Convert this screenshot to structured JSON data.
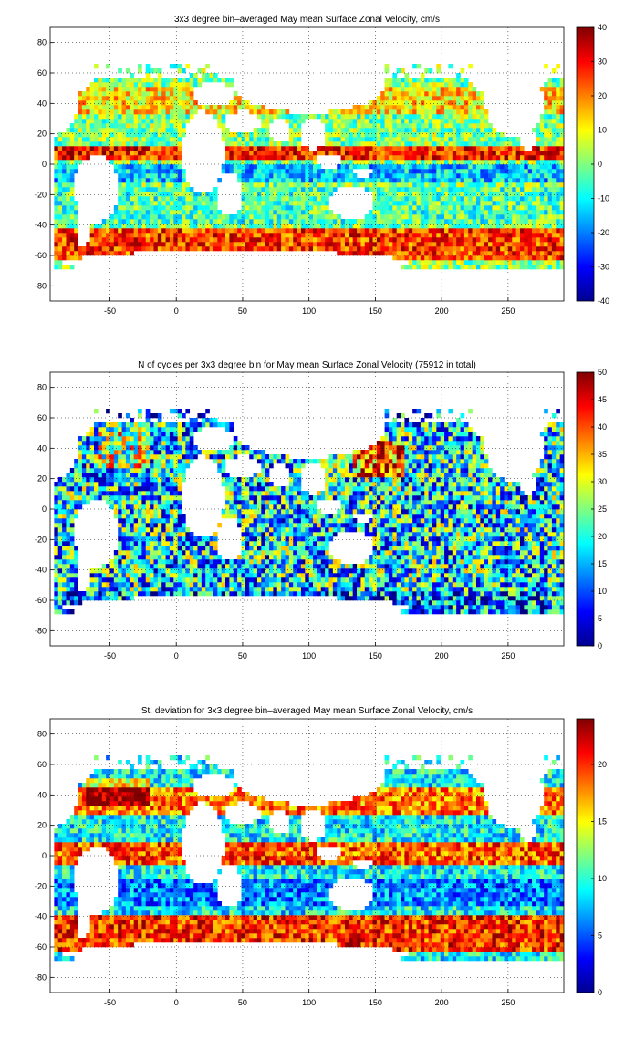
{
  "chart_data": [
    {
      "type": "heatmap",
      "title": "3x3 degree bin–averaged May mean Surface Zonal Velocity, cm/s",
      "xlabel": "",
      "ylabel": "",
      "xlim": [
        -95,
        292
      ],
      "ylim": [
        -90,
        90
      ],
      "xticks": [
        -50,
        0,
        50,
        100,
        150,
        200,
        250
      ],
      "yticks": [
        80,
        60,
        40,
        20,
        0,
        -20,
        -40,
        -60,
        -80
      ],
      "grid": true,
      "colormap": "jet",
      "colorbar": {
        "range": [
          -40,
          40
        ],
        "ticks": [
          40,
          30,
          20,
          10,
          0,
          -10,
          -20,
          -30,
          -40
        ]
      }
    },
    {
      "type": "heatmap",
      "title": "N of cycles per 3x3 degree bin for May mean Surface Zonal Velocity (75912 in total)",
      "xlabel": "",
      "ylabel": "",
      "xlim": [
        -95,
        292
      ],
      "ylim": [
        -90,
        90
      ],
      "xticks": [
        -50,
        0,
        50,
        100,
        150,
        200,
        250
      ],
      "yticks": [
        80,
        60,
        40,
        20,
        0,
        -20,
        -40,
        -60,
        -80
      ],
      "grid": true,
      "colormap": "jet",
      "colorbar": {
        "range": [
          0,
          50
        ],
        "ticks": [
          50,
          45,
          40,
          35,
          30,
          25,
          20,
          15,
          10,
          5,
          0
        ]
      }
    },
    {
      "type": "heatmap",
      "title": "St. deviation for 3x3 degree bin–averaged May mean Surface Zonal Velocity, cm/s",
      "xlabel": "",
      "ylabel": "",
      "xlim": [
        -95,
        292
      ],
      "ylim": [
        -90,
        90
      ],
      "xticks": [
        -50,
        0,
        50,
        100,
        150,
        200,
        250
      ],
      "yticks": [
        80,
        60,
        40,
        20,
        0,
        -20,
        -40,
        -60,
        -80
      ],
      "grid": true,
      "colormap": "jet",
      "colorbar": {
        "range": [
          0,
          24
        ],
        "ticks": [
          20,
          15,
          10,
          5,
          0
        ]
      }
    }
  ]
}
